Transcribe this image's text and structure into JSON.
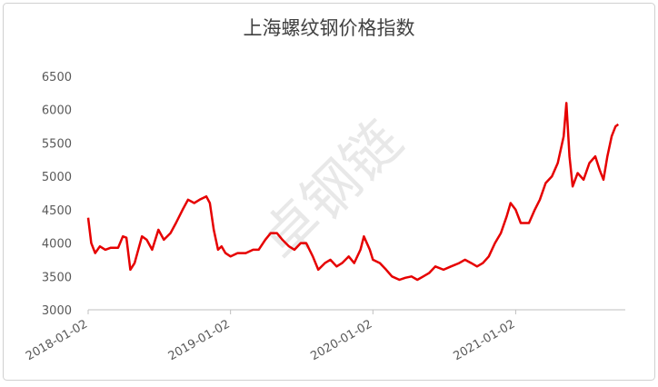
{
  "chart_data": {
    "type": "line",
    "title": "上海螺纹钢价格指数",
    "watermark": "卓钢链",
    "x": [
      "2018-01-02",
      "2018-01-10",
      "2018-01-20",
      "2018-02-01",
      "2018-02-15",
      "2018-03-01",
      "2018-03-20",
      "2018-04-01",
      "2018-04-10",
      "2018-04-20",
      "2018-05-01",
      "2018-05-20",
      "2018-06-01",
      "2018-06-15",
      "2018-07-01",
      "2018-07-15",
      "2018-08-01",
      "2018-08-15",
      "2018-09-01",
      "2018-09-15",
      "2018-10-01",
      "2018-10-15",
      "2018-11-01",
      "2018-11-10",
      "2018-11-20",
      "2018-12-01",
      "2018-12-10",
      "2018-12-20",
      "2019-01-02",
      "2019-01-20",
      "2019-02-10",
      "2019-03-01",
      "2019-03-15",
      "2019-04-01",
      "2019-04-15",
      "2019-05-01",
      "2019-05-15",
      "2019-06-01",
      "2019-06-15",
      "2019-07-01",
      "2019-07-15",
      "2019-08-01",
      "2019-08-15",
      "2019-09-01",
      "2019-09-15",
      "2019-10-01",
      "2019-10-15",
      "2019-11-01",
      "2019-11-15",
      "2019-12-01",
      "2019-12-10",
      "2019-12-25",
      "2020-01-02",
      "2020-01-20",
      "2020-02-05",
      "2020-02-20",
      "2020-03-10",
      "2020-03-25",
      "2020-04-10",
      "2020-04-25",
      "2020-05-10",
      "2020-05-25",
      "2020-06-10",
      "2020-07-01",
      "2020-07-20",
      "2020-08-10",
      "2020-08-25",
      "2020-09-10",
      "2020-09-25",
      "2020-10-10",
      "2020-10-25",
      "2020-11-10",
      "2020-11-25",
      "2020-12-10",
      "2020-12-20",
      "2021-01-02",
      "2021-01-15",
      "2021-02-05",
      "2021-02-20",
      "2021-03-05",
      "2021-03-20",
      "2021-04-05",
      "2021-04-20",
      "2021-05-05",
      "2021-05-12",
      "2021-05-20",
      "2021-05-28",
      "2021-06-10",
      "2021-06-25",
      "2021-07-10",
      "2021-07-25",
      "2021-08-05",
      "2021-08-15",
      "2021-08-25",
      "2021-09-05",
      "2021-09-15",
      "2021-09-22"
    ],
    "series": [
      {
        "name": "上海螺纹钢价格指数",
        "color": "#e60000",
        "values": [
          4380,
          4000,
          3850,
          3950,
          3900,
          3930,
          3930,
          4100,
          4080,
          3600,
          3700,
          4100,
          4050,
          3900,
          4200,
          4050,
          4150,
          4300,
          4500,
          4650,
          4600,
          4650,
          4700,
          4600,
          4200,
          3900,
          3950,
          3850,
          3800,
          3850,
          3850,
          3900,
          3900,
          4050,
          4150,
          4150,
          4050,
          3950,
          3900,
          4000,
          4000,
          3800,
          3600,
          3700,
          3750,
          3650,
          3700,
          3800,
          3700,
          3900,
          4100,
          3900,
          3750,
          3700,
          3600,
          3500,
          3450,
          3480,
          3500,
          3450,
          3500,
          3550,
          3650,
          3600,
          3650,
          3700,
          3750,
          3700,
          3650,
          3700,
          3800,
          4000,
          4150,
          4400,
          4600,
          4500,
          4300,
          4300,
          4500,
          4650,
          4900,
          5000,
          5200,
          5600,
          6100,
          5300,
          4850,
          5050,
          4950,
          5200,
          5300,
          5100,
          4950,
          5300,
          5600,
          5750,
          5780
        ]
      }
    ],
    "xlim": [
      "2018-01-02",
      "2021-10-10"
    ],
    "xticks": [
      "2018-01-02",
      "2019-01-02",
      "2020-01-02",
      "2021-01-02"
    ],
    "ylim": [
      3000,
      6500
    ],
    "yticks": [
      3000,
      3500,
      4000,
      4500,
      5000,
      5500,
      6000,
      6500
    ],
    "grid": false
  }
}
